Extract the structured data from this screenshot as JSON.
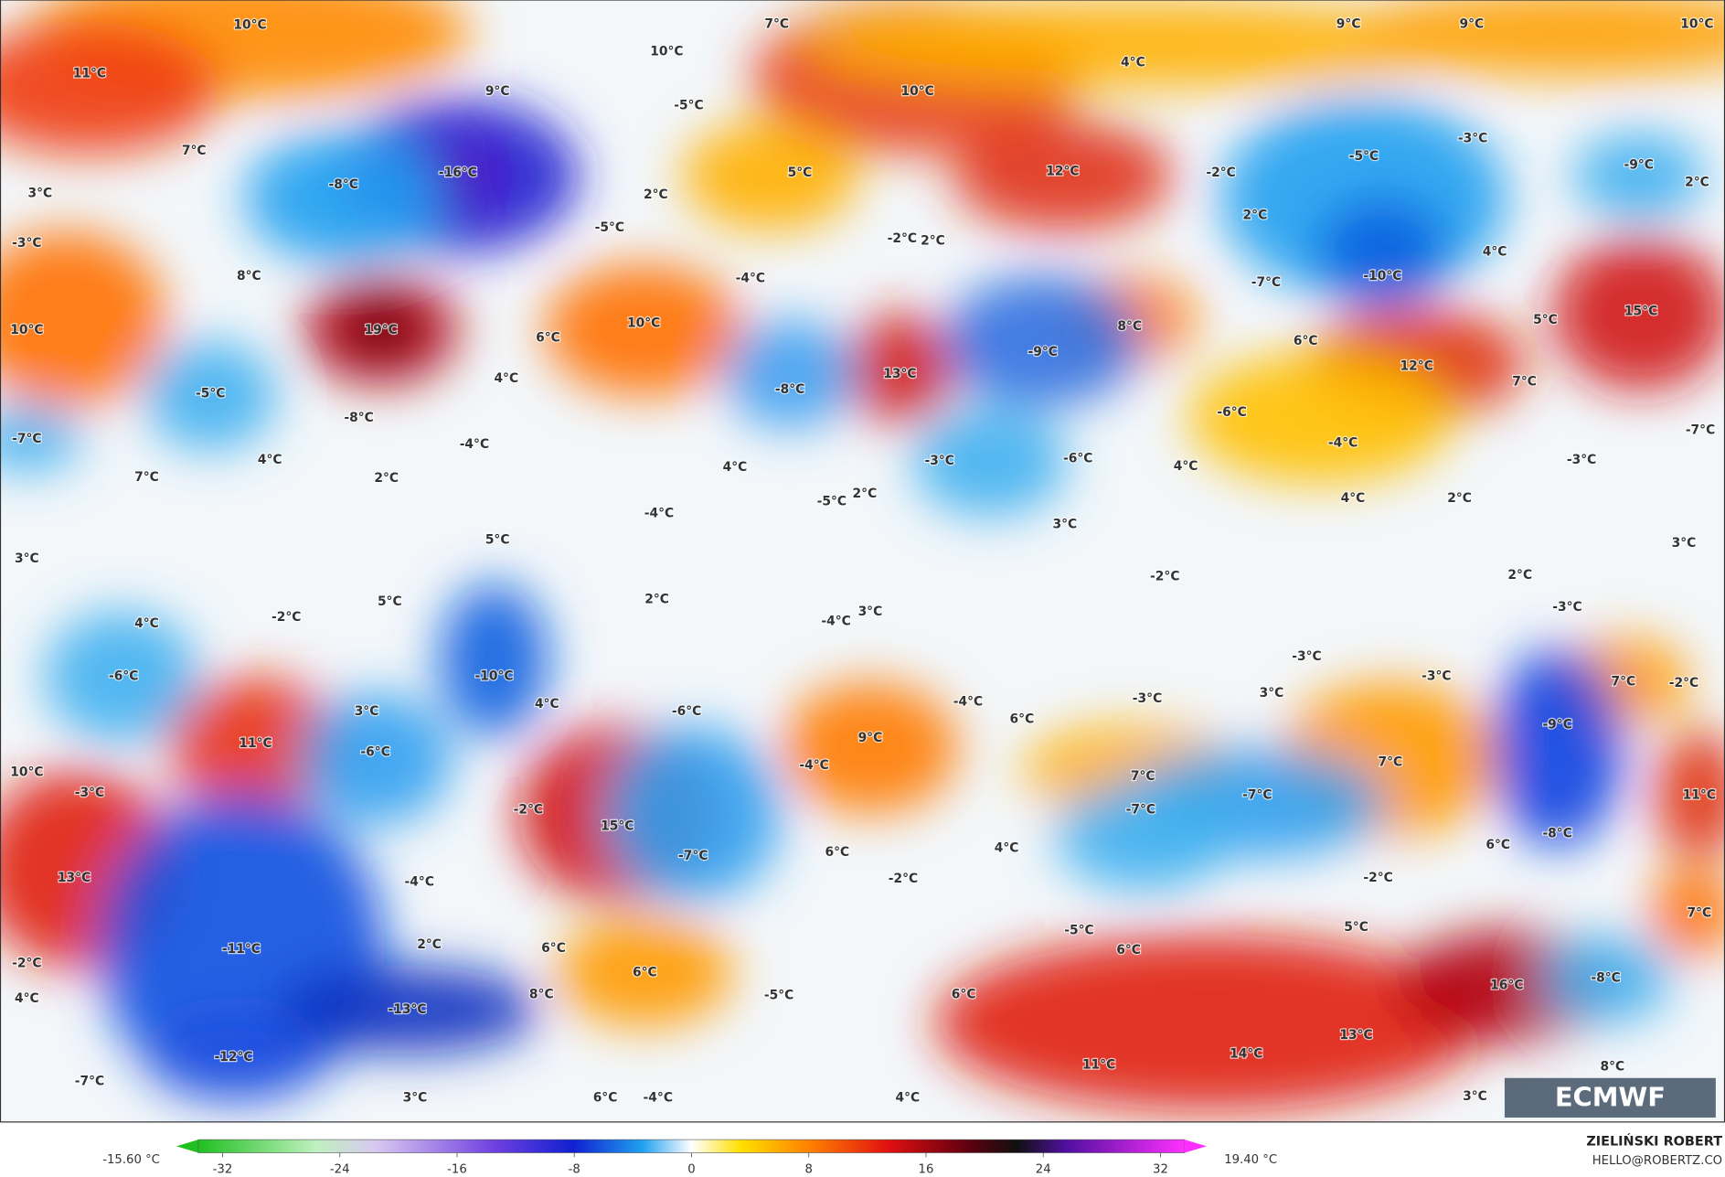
{
  "map": {
    "labels": [
      "10°C",
      "7°C",
      "9°C",
      "9°C",
      "10°C",
      "10°C",
      "11°C",
      "9°C",
      "4°C",
      "10°C",
      "-5°C",
      "-3°C",
      "7°C",
      "-16°C",
      "-5°C",
      "-9°C",
      "5°C",
      "12°C",
      "-2°C",
      "-8°C",
      "2°C",
      "3°C",
      "2°C",
      "2°C",
      "-5°C",
      "-2°C",
      "2°C",
      "-3°C",
      "4°C",
      "8°C",
      "-4°C",
      "-7°C",
      "-10°C",
      "10°C",
      "19°C",
      "10°C",
      "8°C",
      "6°C",
      "15°C",
      "5°C",
      "6°C",
      "-9°C",
      "12°C",
      "13°C",
      "4°C",
      "-5°C",
      "-8°C",
      "7°C",
      "-8°C",
      "-6°C",
      "-7°C",
      "-7°C",
      "-4°C",
      "4°C",
      "-3°C",
      "-6°C",
      "-3°C",
      "-4°C",
      "7°C",
      "4°C",
      "4°C",
      "2°C",
      "4°C",
      "2°C",
      "-5°C",
      "2°C",
      "-4°C",
      "3°C",
      "5°C",
      "3°C",
      "3°C",
      "-2°C",
      "2°C",
      "2°C",
      "5°C",
      "-3°C",
      "-2°C",
      "4°C",
      "3°C",
      "-4°C",
      "-3°C",
      "-6°C",
      "-10°C",
      "-3°C",
      "7°C",
      "-2°C",
      "4°C",
      "-4°C",
      "-3°C",
      "3°C",
      "-6°C",
      "3°C",
      "6°C",
      "-9°C",
      "11°C",
      "-6°C",
      "9°C",
      "-4°C",
      "7°C",
      "10°C",
      "-3°C",
      "7°C",
      "-7°C",
      "11°C",
      "-7°C",
      "-2°C",
      "15°C",
      "-8°C",
      "-7°C",
      "6°C",
      "4°C",
      "6°C",
      "13°C",
      "-4°C",
      "-2°C",
      "-2°C",
      "7°C",
      "-5°C",
      "5°C",
      "-11°C",
      "6°C",
      "2°C",
      "6°C",
      "-2°C",
      "6°C",
      "16°C",
      "-8°C",
      "8°C",
      "-5°C",
      "6°C",
      "4°C",
      "-13°C",
      "13°C",
      "14°C",
      "-12°C",
      "11°C",
      "8°C",
      "-7°C",
      "3°C",
      "6°C",
      "-4°C",
      "4°C",
      "3°C"
    ]
  },
  "colorbar": {
    "min_label": "-15.60 °C",
    "max_label": "19.40 °C",
    "ticks": [
      -32,
      -24,
      -16,
      -8,
      0,
      8,
      16,
      24,
      32
    ]
  },
  "credit": {
    "author": "ZIELIŃSKI ROBERT",
    "contact": "HELLO@ROBERTZ.CO"
  },
  "logo": "ECMWF"
}
